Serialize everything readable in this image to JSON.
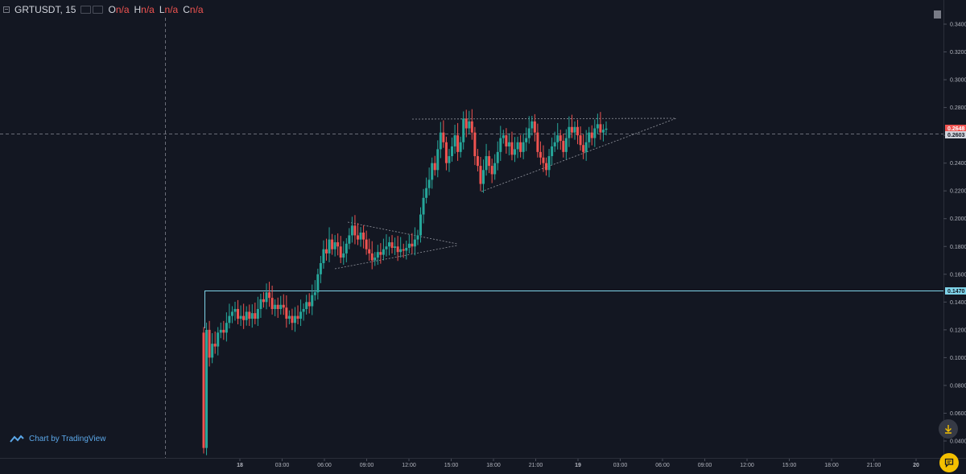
{
  "header": {
    "symbol": "GRTUSDT, 15",
    "ohlc": [
      {
        "key": "O",
        "value": "n/a"
      },
      {
        "key": "H",
        "value": "n/a"
      },
      {
        "key": "L",
        "value": "n/a"
      },
      {
        "key": "C",
        "value": "n/a"
      }
    ]
  },
  "attribution": "Chart by TradingView",
  "price_axis": {
    "ticks": [
      "0.34000",
      "0.32000",
      "0.30000",
      "0.28000",
      "0.26000",
      "0.24000",
      "0.22000",
      "0.20000",
      "0.18000",
      "0.16000",
      "0.14000",
      "0.12000",
      "0.10000",
      "0.08000",
      "0.06000",
      "0.04000"
    ],
    "tags": [
      {
        "label": "0.2648",
        "color": "#ef5350"
      },
      {
        "label": "0.2603",
        "color": "#d1d4dc"
      },
      {
        "label": "0.1470",
        "color": "#7fd3e8"
      }
    ]
  },
  "time_axis": {
    "ticks": [
      "18",
      "03:00",
      "06:00",
      "09:00",
      "12:00",
      "15:00",
      "18:00",
      "21:00",
      "19",
      "03:00",
      "06:00",
      "09:00",
      "12:00",
      "15:00",
      "18:00",
      "21:00",
      "20"
    ]
  },
  "colors": {
    "background": "#131722",
    "up": "#26a69a",
    "down": "#ef5350",
    "horizontal_line": "#7fd3e8",
    "pattern_lines": "#9598a1"
  },
  "chart_data": {
    "type": "candlestick",
    "symbol": "GRTUSDT",
    "interval": "15",
    "y_scale": "linear",
    "ylim": [
      0.03,
      0.35
    ],
    "horizontal_level": 0.147,
    "last_price": 0.2648,
    "crosshair_price": 0.2603,
    "candles_close": [
      0.035,
      0.12,
      0.1,
      0.11,
      0.108,
      0.118,
      0.12,
      0.118,
      0.125,
      0.13,
      0.133,
      0.135,
      0.128,
      0.13,
      0.127,
      0.133,
      0.128,
      0.132,
      0.128,
      0.135,
      0.142,
      0.14,
      0.147,
      0.143,
      0.135,
      0.138,
      0.135,
      0.138,
      0.136,
      0.128,
      0.13,
      0.125,
      0.13,
      0.128,
      0.133,
      0.135,
      0.14,
      0.137,
      0.145,
      0.147,
      0.16,
      0.168,
      0.178,
      0.175,
      0.185,
      0.178,
      0.183,
      0.18,
      0.172,
      0.175,
      0.182,
      0.188,
      0.195,
      0.188,
      0.185,
      0.19,
      0.185,
      0.178,
      0.175,
      0.17,
      0.172,
      0.176,
      0.174,
      0.178,
      0.18,
      0.183,
      0.179,
      0.18,
      0.176,
      0.178,
      0.177,
      0.179,
      0.182,
      0.18,
      0.185,
      0.188,
      0.203,
      0.215,
      0.222,
      0.228,
      0.24,
      0.235,
      0.25,
      0.262,
      0.255,
      0.24,
      0.245,
      0.252,
      0.26,
      0.248,
      0.255,
      0.272,
      0.265,
      0.27,
      0.262,
      0.245,
      0.238,
      0.225,
      0.235,
      0.245,
      0.238,
      0.232,
      0.24,
      0.248,
      0.258,
      0.26,
      0.252,
      0.255,
      0.246,
      0.25,
      0.255,
      0.248,
      0.255,
      0.258,
      0.265,
      0.27,
      0.262,
      0.248,
      0.244,
      0.24,
      0.235,
      0.245,
      0.252,
      0.255,
      0.26,
      0.256,
      0.248,
      0.258,
      0.266,
      0.262,
      0.266,
      0.26,
      0.253,
      0.248,
      0.255,
      0.262,
      0.258,
      0.265,
      0.268,
      0.262,
      0.264,
      0.2648
    ]
  }
}
